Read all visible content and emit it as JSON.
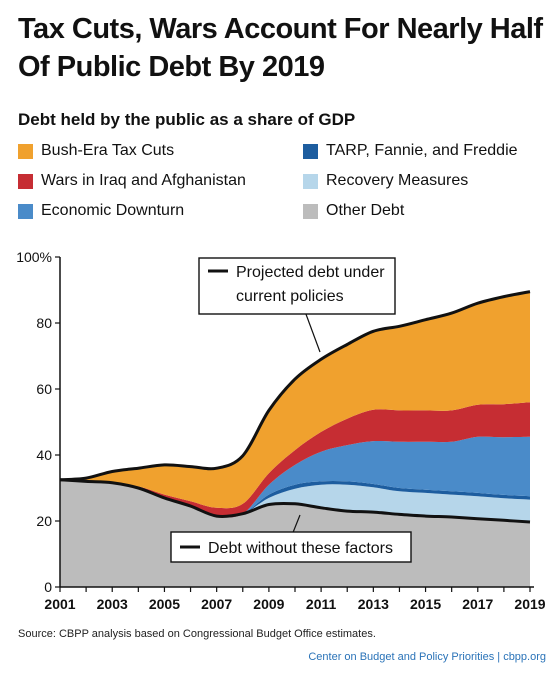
{
  "title_line1": "Tax Cuts, Wars Account For Nearly Half",
  "title_line2": "Of Public Debt By 2019",
  "chart_data": {
    "type": "area",
    "title": "Tax Cuts, Wars Account For Nearly Half Of Public Debt By 2019",
    "subtitle": "Debt held by the public as a share of GDP",
    "ylim": [
      0,
      100
    ],
    "y_ticks": [
      "0",
      "20",
      "40",
      "60",
      "80",
      "100%"
    ],
    "y_tick_values": [
      0,
      20,
      40,
      60,
      80,
      100
    ],
    "x": [
      2001,
      2002,
      2003,
      2004,
      2005,
      2006,
      2007,
      2008,
      2009,
      2010,
      2011,
      2012,
      2013,
      2014,
      2015,
      2016,
      2017,
      2018,
      2019
    ],
    "x_tick_labels": [
      "2001",
      "2003",
      "2005",
      "2007",
      "2009",
      "2011",
      "2013",
      "2015",
      "2017",
      "2019"
    ],
    "stacked": true,
    "series": [
      {
        "name": "Other Debt",
        "color": "#bcbcbc",
        "values": [
          32.5,
          32,
          31.6,
          30,
          27,
          24.5,
          21.5,
          22.2,
          25,
          25.2,
          24,
          23,
          22.7,
          22,
          21.5,
          21.2,
          20.7,
          20.2,
          19.7
        ]
      },
      {
        "name": "Recovery Measures",
        "color": "#b6d6ea",
        "values": [
          0,
          0,
          0,
          0,
          0,
          0,
          0,
          0,
          2,
          4.6,
          7,
          8,
          7.5,
          7,
          7,
          6.8,
          6.8,
          6.7,
          6.8
        ]
      },
      {
        "name": "TARP, Fannie, and Freddie",
        "color": "#1d5d9f",
        "values": [
          0,
          0,
          0,
          0,
          0,
          0,
          0,
          0,
          1,
          1.2,
          1,
          1,
          1,
          1,
          1,
          1,
          1,
          1,
          1
        ]
      },
      {
        "name": "Economic Downturn",
        "color": "#4a8bc9",
        "values": [
          0,
          0,
          0,
          0,
          0,
          0,
          0,
          0,
          3,
          6,
          9,
          11,
          13,
          14,
          14.5,
          15,
          17,
          17.5,
          18
        ]
      },
      {
        "name": "Wars in Iraq and Afghanistan",
        "color": "#c62d33",
        "values": [
          0,
          0,
          0.2,
          0.5,
          1,
          1.5,
          2.5,
          3,
          3.5,
          4.5,
          6,
          8,
          9.5,
          9.5,
          9.5,
          9.5,
          9.7,
          10,
          10.5
        ]
      },
      {
        "name": "Bush-Era Tax Cuts",
        "color": "#f0a12e",
        "values": [
          0,
          1,
          3.2,
          5.5,
          9,
          10.5,
          12,
          14.6,
          19,
          21.5,
          22,
          22.5,
          23.8,
          25.5,
          27.5,
          29.5,
          30.8,
          32.6,
          33.5
        ]
      }
    ],
    "annotations": [
      {
        "text_line1": "Projected debt under",
        "text_line2": "current policies"
      },
      {
        "text": "Debt without these factors"
      }
    ]
  },
  "legend_left": [
    "Bush-Era Tax Cuts",
    "Wars in Iraq and Afghanistan",
    "Economic Downturn"
  ],
  "legend_right": [
    "TARP, Fannie, and Freddie",
    "Recovery Measures",
    "Other Debt"
  ],
  "legend_colors_left": [
    "#f0a12e",
    "#c62d33",
    "#4a8bc9"
  ],
  "legend_colors_right": [
    "#1d5d9f",
    "#b6d6ea",
    "#bcbcbc"
  ],
  "source": "Source:  CBPP analysis based on Congressional Budget Office estimates.",
  "org": "Center on Budget and Policy Priorities | cbpp.org"
}
